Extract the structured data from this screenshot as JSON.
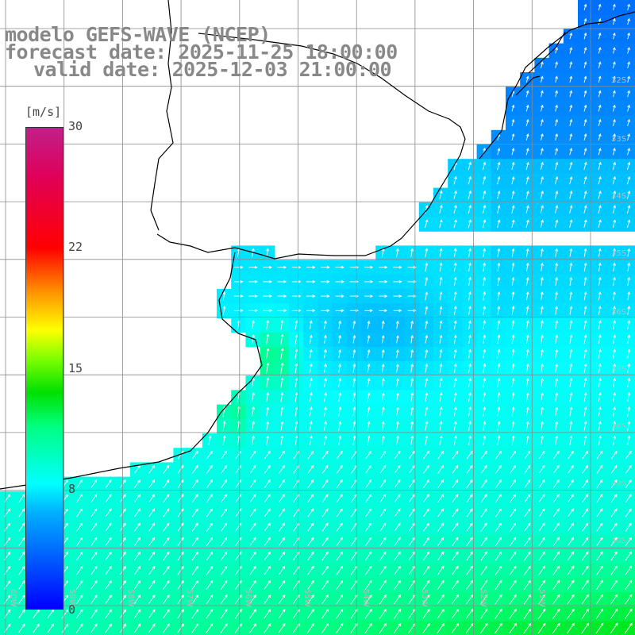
{
  "header": {
    "line1": "modelo GEFS-WAVE (NCEP)",
    "line2": "forecast date: 2025-11-25 18:00:00",
    "line3": "valid date: 2025-12-03 21:00:00"
  },
  "colorbar": {
    "unit": "[m/s]",
    "ticks": [
      "30",
      "22",
      "15",
      "8",
      "0"
    ],
    "tick_values": [
      30,
      22,
      15,
      8,
      0
    ],
    "range": [
      0,
      30
    ]
  },
  "map_labels": {
    "lat": [
      "32S",
      "33S",
      "34S",
      "35S",
      "36S",
      "37S",
      "38S",
      "39S",
      "40S"
    ],
    "lon": [
      "60W",
      "59W",
      "58W",
      "57W",
      "56W",
      "55W",
      "54W",
      "53W",
      "52W",
      "51W"
    ]
  },
  "colors": {
    "land": "#ffffff",
    "grid": "#8a8a8a",
    "coast": "#000000",
    "arrow": "#ffffff",
    "title": "#888888"
  }
}
